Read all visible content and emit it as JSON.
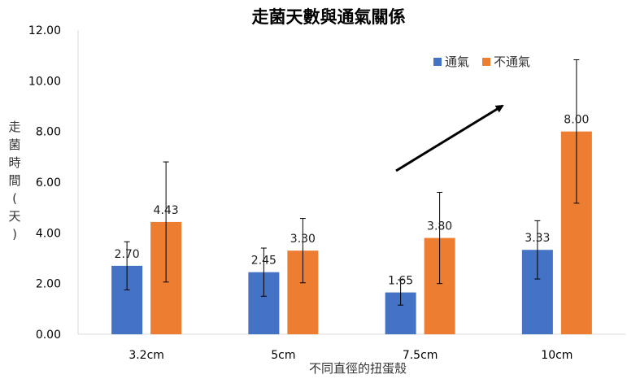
{
  "chart_data": {
    "type": "bar",
    "title": "走菌天數與通氣關係",
    "xlabel": "不同直徑的扭蛋殼",
    "ylabel": "走菌時間(天)",
    "categories": [
      "3.2cm",
      "5cm",
      "7.5cm",
      "10cm"
    ],
    "ylim": [
      0,
      12
    ],
    "yticks": [
      "0.00",
      "2.00",
      "4.00",
      "6.00",
      "8.00",
      "10.00",
      "12.00"
    ],
    "grid": false,
    "legend_position": "top-right",
    "series": [
      {
        "name": "通氣",
        "color": "#4472C4",
        "values": [
          2.7,
          2.45,
          1.65,
          3.33
        ],
        "labels": [
          "2.70",
          "2.45",
          "1.65",
          "3.33"
        ],
        "error": [
          0.95,
          0.95,
          0.5,
          1.15
        ]
      },
      {
        "name": "不通氣",
        "color": "#ED7D31",
        "values": [
          4.43,
          3.3,
          3.8,
          8.0
        ],
        "labels": [
          "4.43",
          "3.30",
          "3.80",
          "8.00"
        ],
        "error": [
          2.37,
          1.27,
          1.8,
          2.83
        ]
      }
    ],
    "annotation": "trend-arrow"
  }
}
